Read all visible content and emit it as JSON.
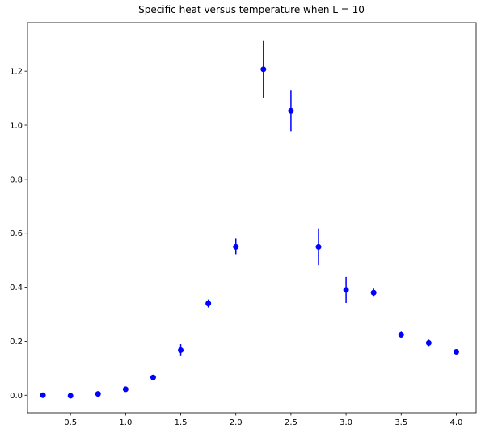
{
  "chart_data": {
    "type": "scatter",
    "title": "Specific heat versus temperature when L = 10",
    "xlabel": "",
    "ylabel": "",
    "xlim": [
      0.11,
      4.18
    ],
    "ylim": [
      -0.065,
      1.38
    ],
    "x_ticks": [
      0.5,
      1.0,
      1.5,
      2.0,
      2.5,
      3.0,
      3.5,
      4.0
    ],
    "x_tick_labels": [
      "0.5",
      "1.0",
      "1.5",
      "2.0",
      "2.5",
      "3.0",
      "3.5",
      "4.0"
    ],
    "y_ticks": [
      0.0,
      0.2,
      0.4,
      0.6,
      0.8,
      1.0,
      1.2
    ],
    "y_tick_labels": [
      "0.0",
      "0.2",
      "0.4",
      "0.6",
      "0.8",
      "1.0",
      "1.2"
    ],
    "grid": false,
    "legend": "none",
    "marker_color": "#0000ff",
    "errorbar_color": "#0000ff",
    "series": [
      {
        "x": [
          0.25,
          0.5,
          0.75,
          1.0,
          1.25,
          1.5,
          1.75,
          2.0,
          2.25,
          2.5,
          2.75,
          3.0,
          3.25,
          3.5,
          3.75,
          4.0
        ],
        "y": [
          0.0,
          -0.002,
          0.005,
          0.022,
          0.066,
          0.167,
          0.34,
          0.55,
          1.207,
          1.053,
          0.55,
          0.39,
          0.38,
          0.224,
          0.194,
          0.161
        ],
        "yerr": [
          0.003,
          0.003,
          0.004,
          0.006,
          0.008,
          0.022,
          0.015,
          0.03,
          0.105,
          0.075,
          0.068,
          0.048,
          0.015,
          0.012,
          0.012,
          0.007
        ]
      }
    ]
  }
}
